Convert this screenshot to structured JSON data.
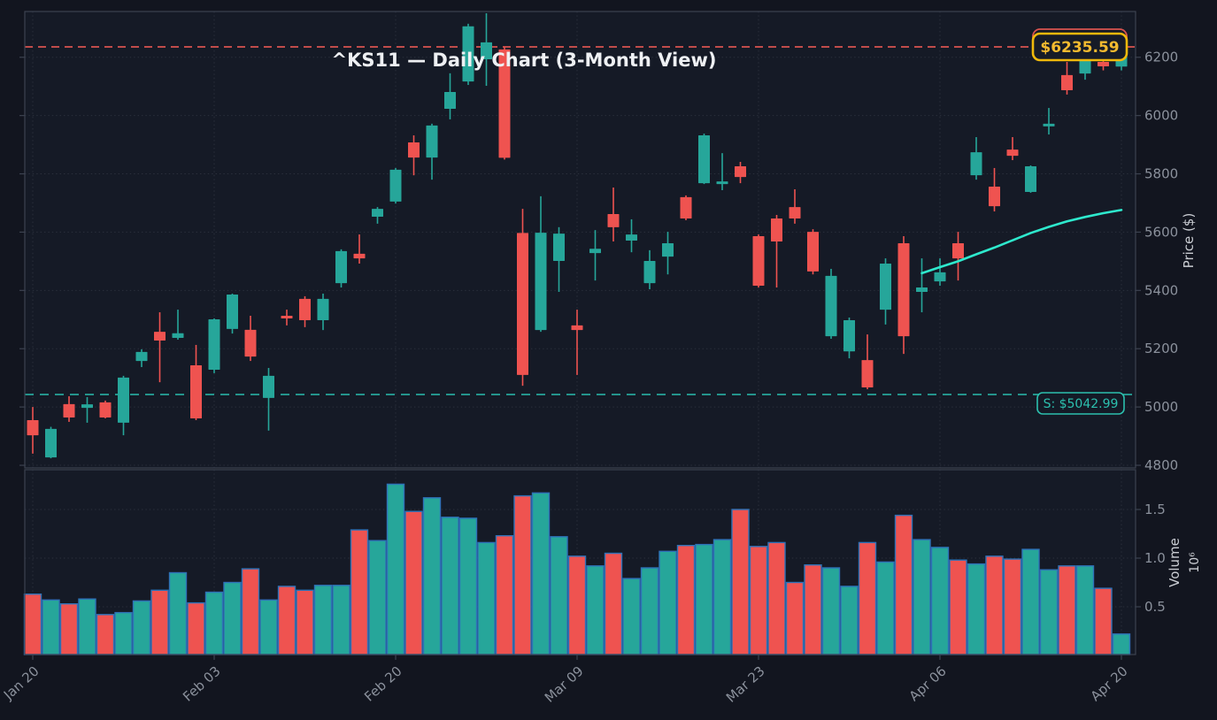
{
  "title": "^KS11 — Daily Chart (3-Month View)",
  "badges": {
    "resistance_label": "$6235.59",
    "support_label": "S: $5042.99"
  },
  "levels": {
    "resistance": 6235.59,
    "support": 5042.99
  },
  "axes": {
    "price_axis_label": "Price ($)",
    "volume_axis_label": "Volume",
    "volume_axis_multiplier": "10⁶",
    "price_ticks": [
      4800,
      5000,
      5200,
      5400,
      5600,
      5800,
      6000,
      6200
    ],
    "volume_ticks": [
      0.5,
      1.0,
      1.5
    ],
    "x_ticks": [
      {
        "index": 0,
        "label": "Jan 20"
      },
      {
        "index": 10,
        "label": "Feb 03"
      },
      {
        "index": 20,
        "label": "Feb 20"
      },
      {
        "index": 30,
        "label": "Mar 09"
      },
      {
        "index": 40,
        "label": "Mar 23"
      },
      {
        "index": 50,
        "label": "Apr 06"
      },
      {
        "index": 60,
        "label": "Apr 20"
      }
    ]
  },
  "colors": {
    "figure_bg": "#12151f",
    "pane_bg": "#151a26",
    "grid": "#2b303c",
    "spine": "#3c4250",
    "tick_text": "#8b919c",
    "title_text": "#eef0f3",
    "up": "#26a69a",
    "down": "#ef5350",
    "trend": "#2ee9cd",
    "resistance_line": "#d9534f",
    "support_line": "#26a69a",
    "volume_edge": "#2e72b8",
    "badge_border": "#f0b90b",
    "badge_text": "#f3ba2f",
    "badge_fill": "#161b27",
    "support_badge": "#2cc0ae"
  },
  "chart_data": {
    "type": "candlestick+volume",
    "price_ylim": [
      4791,
      6357
    ],
    "volume_ylim": [
      0,
      1.9
    ],
    "volume_unit": "1e6",
    "n_candles": 61,
    "ohlc": [
      [
        4955,
        5000,
        4840,
        4903
      ],
      [
        4827,
        4932,
        4824,
        4925
      ],
      [
        5010,
        5037,
        4949,
        4964
      ],
      [
        4997,
        5034,
        4946,
        5009
      ],
      [
        5016,
        5022,
        4961,
        4964
      ],
      [
        4946,
        5107,
        4903,
        5101
      ],
      [
        5158,
        5198,
        5137,
        5189
      ],
      [
        5258,
        5325,
        5085,
        5228
      ],
      [
        5237,
        5334,
        5231,
        5253
      ],
      [
        5143,
        5213,
        4955,
        4961
      ],
      [
        5128,
        5304,
        5116,
        5301
      ],
      [
        5268,
        5389,
        5252,
        5386
      ],
      [
        5265,
        5313,
        5158,
        5173
      ],
      [
        5031,
        5134,
        4919,
        5107
      ],
      [
        5313,
        5334,
        5280,
        5304
      ],
      [
        5371,
        5380,
        5274,
        5298
      ],
      [
        5298,
        5389,
        5264,
        5371
      ],
      [
        5425,
        5541,
        5410,
        5535
      ],
      [
        5526,
        5592,
        5492,
        5510
      ],
      [
        5653,
        5686,
        5629,
        5680
      ],
      [
        5705,
        5820,
        5698,
        5814
      ],
      [
        5908,
        5932,
        5795,
        5856
      ],
      [
        5856,
        5972,
        5780,
        5966
      ],
      [
        6023,
        6145,
        5987,
        6081
      ],
      [
        6117,
        6315,
        6105,
        6306
      ],
      [
        6193,
        6351,
        6102,
        6251
      ],
      [
        6227,
        6236,
        5849,
        5855
      ],
      [
        5597,
        5680,
        5073,
        5110
      ],
      [
        5264,
        5723,
        5258,
        5598
      ],
      [
        5501,
        5617,
        5395,
        5595
      ],
      [
        5280,
        5334,
        5110,
        5264
      ],
      [
        5528,
        5607,
        5434,
        5543
      ],
      [
        5662,
        5753,
        5568,
        5617
      ],
      [
        5571,
        5644,
        5531,
        5592
      ],
      [
        5425,
        5538,
        5404,
        5501
      ],
      [
        5516,
        5601,
        5455,
        5562
      ],
      [
        5720,
        5726,
        5641,
        5647
      ],
      [
        5768,
        5938,
        5765,
        5932
      ],
      [
        5765,
        5871,
        5744,
        5774
      ],
      [
        5826,
        5841,
        5768,
        5789
      ],
      [
        5586,
        5592,
        5410,
        5416
      ],
      [
        5647,
        5659,
        5410,
        5568
      ],
      [
        5686,
        5747,
        5629,
        5647
      ],
      [
        5601,
        5610,
        5455,
        5465
      ],
      [
        5243,
        5474,
        5234,
        5450
      ],
      [
        5191,
        5307,
        5167,
        5298
      ],
      [
        5161,
        5249,
        5061,
        5067
      ],
      [
        5334,
        5510,
        5283,
        5492
      ],
      [
        5562,
        5586,
        5182,
        5243
      ],
      [
        5395,
        5510,
        5325,
        5410
      ],
      [
        5431,
        5510,
        5416,
        5462
      ],
      [
        5562,
        5601,
        5434,
        5510
      ],
      [
        5795,
        5926,
        5780,
        5874
      ],
      [
        5756,
        5820,
        5671,
        5689
      ],
      [
        5883,
        5926,
        5847,
        5862
      ],
      [
        5738,
        5829,
        5735,
        5826
      ],
      [
        5963,
        6026,
        5935,
        5972
      ],
      [
        6139,
        6184,
        6072,
        6087
      ],
      [
        6144,
        6223,
        6123,
        6190
      ],
      [
        6184,
        6200,
        6155,
        6169
      ],
      [
        6168,
        6240,
        6155,
        6235.59
      ]
    ],
    "volumes": [
      0.63,
      0.57,
      0.53,
      0.58,
      0.42,
      0.44,
      0.56,
      0.67,
      0.85,
      0.54,
      0.65,
      0.75,
      0.89,
      0.57,
      0.71,
      0.67,
      0.72,
      0.72,
      1.29,
      1.18,
      1.76,
      1.48,
      1.62,
      1.42,
      1.41,
      1.16,
      1.23,
      1.64,
      1.67,
      1.22,
      1.02,
      0.92,
      1.05,
      0.79,
      0.9,
      1.07,
      1.13,
      1.14,
      1.19,
      1.5,
      1.12,
      1.16,
      0.75,
      0.93,
      0.9,
      0.71,
      1.16,
      0.96,
      1.44,
      1.19,
      1.11,
      0.98,
      0.94,
      1.02,
      0.99,
      1.09,
      0.88,
      0.92,
      0.92,
      0.69,
      0.22
    ],
    "trend_line": {
      "start_index": 49,
      "values": [
        5459,
        5480,
        5500,
        5524,
        5547,
        5572,
        5597,
        5618,
        5637,
        5652,
        5665,
        5676
      ]
    }
  }
}
